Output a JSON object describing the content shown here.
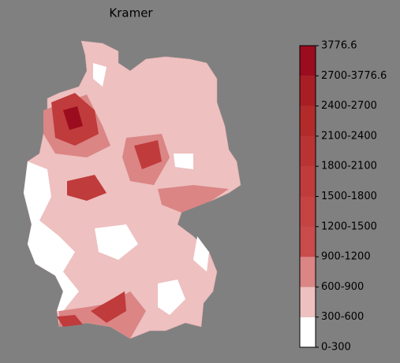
{
  "chart_data": {
    "type": "choropleth",
    "title": "Kramer",
    "colorbar": {
      "labels": [
        "0-300",
        "300-600",
        "600-900",
        "900-1200",
        "1200-1500",
        "1500-1800",
        "1800-2100",
        "2100-2400",
        "2400-2700",
        "2700-3776.6",
        "3776.6"
      ],
      "colors": [
        "#ffffff",
        "#eec0c0",
        "#db8585",
        "#c94b4b",
        "#c54343",
        "#c03b3b",
        "#ba3333",
        "#b32a2a",
        "#a91e24",
        "#9b0c1e"
      ]
    }
  }
}
